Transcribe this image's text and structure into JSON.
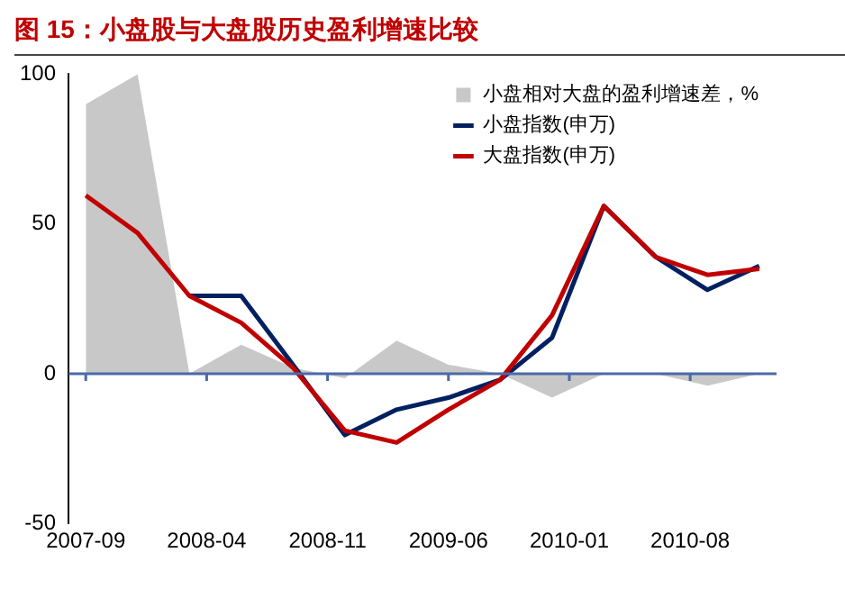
{
  "chart_data": {
    "type": "line",
    "title": "图 15：小盘股与大盘股历史盈利增速比较",
    "x": [
      "2007-09",
      "2007-12",
      "2008-03",
      "2008-06",
      "2008-09",
      "2008-12",
      "2009-03",
      "2009-06",
      "2009-09",
      "2009-12",
      "2010-03",
      "2010-06",
      "2010-09",
      "2010-12"
    ],
    "series": [
      {
        "name": "小盘相对大盘的盈利增速差，%",
        "type": "area",
        "color": "#c8c8c8",
        "values": [
          90,
          100,
          0,
          9.7,
          2,
          -1.5,
          11,
          3,
          0,
          -8,
          0,
          0,
          -4,
          0
        ]
      },
      {
        "name": "小盘指数(申万)",
        "color": "#002060",
        "values": [
          null,
          null,
          26,
          26,
          3,
          -20.5,
          -12,
          -8,
          -2,
          12,
          56,
          39,
          28,
          36
        ]
      },
      {
        "name": "大盘指数(申万)",
        "color": "#c00000",
        "values": [
          59.5,
          47,
          26,
          17,
          2,
          -19,
          -23,
          -12,
          -2,
          19.5,
          56,
          39,
          33,
          35
        ]
      }
    ],
    "xlim": [
      "2007-08",
      "2011-01"
    ],
    "xticks": [
      "2007-09",
      "2008-04",
      "2008-11",
      "2009-06",
      "2010-01",
      "2010-08"
    ],
    "ref_lines": [
      {
        "axis": "y",
        "value": 0,
        "color": "#4a6aa8"
      }
    ],
    "ylim": [
      -50,
      100
    ],
    "yticks": [
      -50,
      0,
      50,
      100
    ],
    "legend": "top right",
    "marker": "none",
    "line_style": "solid"
  }
}
